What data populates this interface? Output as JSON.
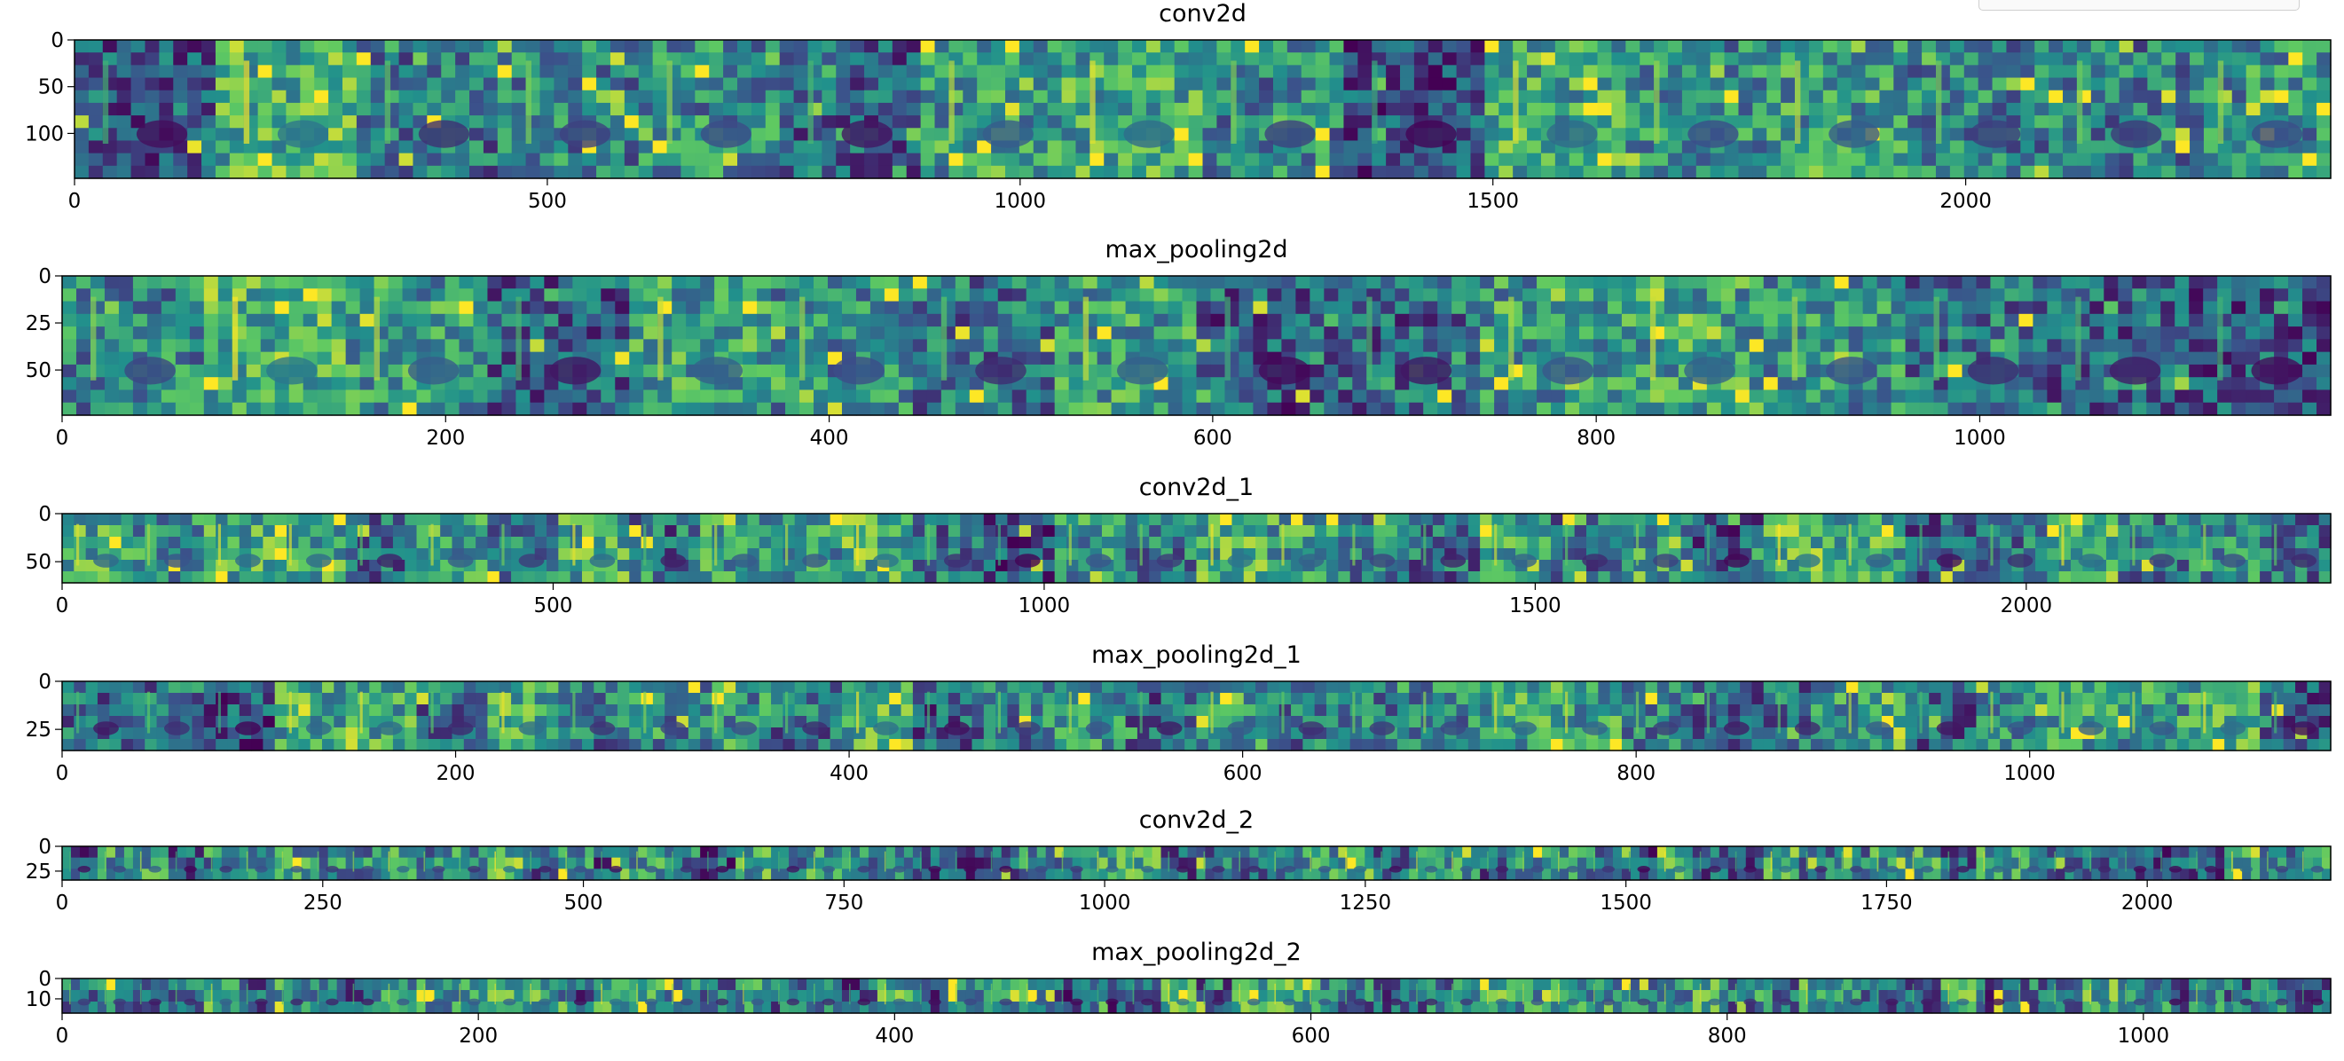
{
  "figure": {
    "background": "#ffffff",
    "colormap": [
      "#440154",
      "#3b528b",
      "#21918c",
      "#5ec962",
      "#fde725"
    ]
  },
  "chart_data": [
    {
      "type": "heatmap",
      "title": "conv2d",
      "xlim": [
        0,
        2386
      ],
      "ylim": [
        148,
        0
      ],
      "xticks": [
        0,
        500,
        1000,
        1500,
        2000
      ],
      "yticks": [
        0,
        50,
        100
      ],
      "tiles": 16,
      "grid": false,
      "legend": "none"
    },
    {
      "type": "heatmap",
      "title": "max_pooling2d",
      "xlim": [
        0,
        1183
      ],
      "ylim": [
        74,
        0
      ],
      "xticks": [
        0,
        200,
        400,
        600,
        800,
        1000
      ],
      "yticks": [
        0,
        25,
        50
      ],
      "tiles": 16,
      "grid": false,
      "legend": "none"
    },
    {
      "type": "heatmap",
      "title": "conv2d_1",
      "xlim": [
        0,
        2310
      ],
      "ylim": [
        72,
        0
      ],
      "xticks": [
        0,
        500,
        1000,
        1500,
        2000
      ],
      "yticks": [
        0,
        50
      ],
      "tiles": 32,
      "grid": false,
      "legend": "none"
    },
    {
      "type": "heatmap",
      "title": "max_pooling2d_1",
      "xlim": [
        0,
        1153
      ],
      "ylim": [
        36,
        0
      ],
      "xticks": [
        0,
        200,
        400,
        600,
        800,
        1000
      ],
      "yticks": [
        0,
        25
      ],
      "tiles": 32,
      "grid": false,
      "legend": "none"
    },
    {
      "type": "heatmap",
      "title": "conv2d_2",
      "xlim": [
        0,
        2176
      ],
      "ylim": [
        34,
        0
      ],
      "xticks": [
        0,
        250,
        500,
        750,
        1000,
        1250,
        1500,
        1750,
        2000
      ],
      "yticks": [
        0,
        25
      ],
      "tiles": 64,
      "grid": false,
      "legend": "none"
    },
    {
      "type": "heatmap",
      "title": "max_pooling2d_2",
      "xlim": [
        0,
        1090
      ],
      "ylim": [
        17,
        0
      ],
      "xticks": [
        0,
        200,
        400,
        600,
        800,
        1000
      ],
      "yticks": [
        0,
        10
      ],
      "tiles": 64,
      "grid": false,
      "legend": "none"
    }
  ]
}
